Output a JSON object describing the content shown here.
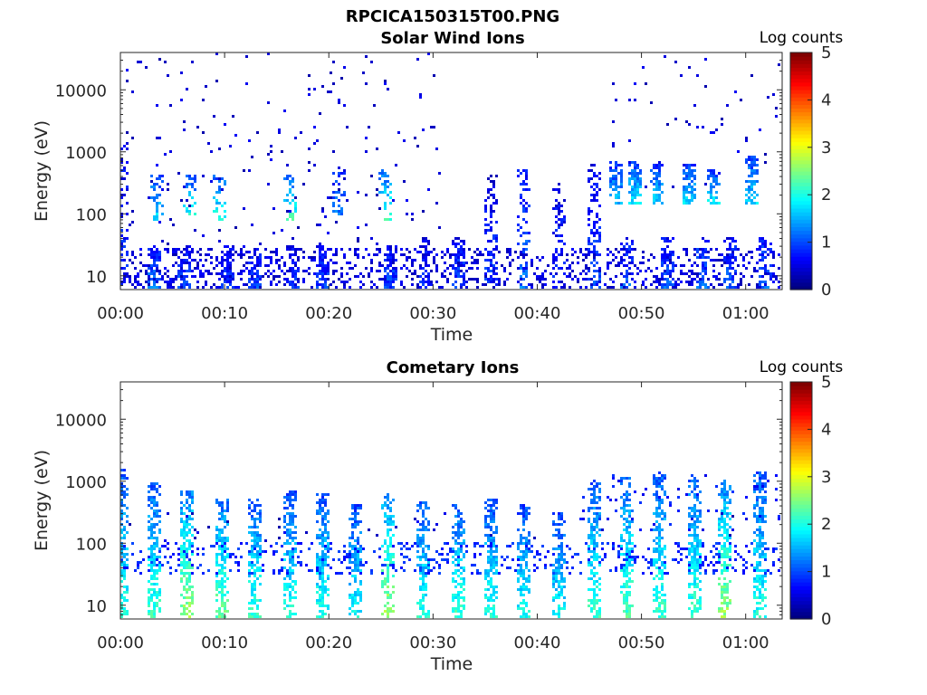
{
  "figure": {
    "title": "RPCICA150315T00.PNG"
  },
  "chart_data": [
    {
      "type": "heatmap",
      "title": "Solar Wind Ions",
      "xlabel": "Time",
      "ylabel": "Energy (eV)",
      "y_scale": "log",
      "xlim_minutes": [
        0,
        63.5
      ],
      "ylim_eV": [
        6,
        40000
      ],
      "x_ticks": [
        "00:00",
        "00:10",
        "00:20",
        "00:30",
        "00:40",
        "00:50",
        "01:00"
      ],
      "y_ticks": [
        "10",
        "100",
        "1000",
        "10000"
      ],
      "colorbar": {
        "title": "Log counts",
        "range": [
          0,
          5
        ],
        "ticks": [
          "0",
          "1",
          "2",
          "3",
          "4",
          "5"
        ],
        "colormap": "jet"
      },
      "grid": false,
      "bursts": [
        {
          "t": 0.2,
          "emin": 6,
          "emax": 1500,
          "dens": 0.45,
          "val": 0.5
        },
        {
          "t": 3.2,
          "emin": 6,
          "emax": 30,
          "dens": 0.8,
          "val": 0.8
        },
        {
          "t": 3.4,
          "emin": 80,
          "emax": 400,
          "dens": 0.5,
          "val": 1.3
        },
        {
          "t": 6.2,
          "emin": 6,
          "emax": 30,
          "dens": 0.8,
          "val": 0.6
        },
        {
          "t": 6.6,
          "emin": 100,
          "emax": 400,
          "dens": 0.5,
          "val": 1.4
        },
        {
          "t": 9.6,
          "emin": 80,
          "emax": 400,
          "dens": 0.5,
          "val": 1.5
        },
        {
          "t": 10.2,
          "emin": 6,
          "emax": 30,
          "dens": 0.8,
          "val": 0.5
        },
        {
          "t": 12.8,
          "emin": 6,
          "emax": 30,
          "dens": 0.7,
          "val": 0.6
        },
        {
          "t": 16.3,
          "emin": 80,
          "emax": 400,
          "dens": 0.5,
          "val": 1.6
        },
        {
          "t": 16.6,
          "emin": 6,
          "emax": 30,
          "dens": 0.8,
          "val": 0.5
        },
        {
          "t": 19.5,
          "emin": 6,
          "emax": 30,
          "dens": 0.8,
          "val": 0.6
        },
        {
          "t": 21.0,
          "emin": 100,
          "emax": 600,
          "dens": 0.4,
          "val": 0.8
        },
        {
          "t": 25.4,
          "emin": 80,
          "emax": 500,
          "dens": 0.5,
          "val": 1.6
        },
        {
          "t": 25.8,
          "emin": 6,
          "emax": 30,
          "dens": 0.8,
          "val": 0.6
        },
        {
          "t": 29.2,
          "emin": 6,
          "emax": 40,
          "dens": 0.7,
          "val": 0.5
        },
        {
          "t": 32.5,
          "emin": 6,
          "emax": 40,
          "dens": 0.6,
          "val": 0.6
        },
        {
          "t": 35.5,
          "emin": 6,
          "emax": 400,
          "dens": 0.5,
          "val": 0.5
        },
        {
          "t": 38.8,
          "emin": 6,
          "emax": 500,
          "dens": 0.4,
          "val": 0.8
        },
        {
          "t": 42.0,
          "emin": 6,
          "emax": 300,
          "dens": 0.4,
          "val": 0.5
        },
        {
          "t": 45.5,
          "emin": 6,
          "emax": 600,
          "dens": 0.5,
          "val": 0.6
        },
        {
          "t": 47.5,
          "emin": 150,
          "emax": 700,
          "dens": 0.8,
          "val": 1.1
        },
        {
          "t": 48.5,
          "emin": 6,
          "emax": 40,
          "dens": 0.6,
          "val": 0.7
        },
        {
          "t": 49.5,
          "emin": 150,
          "emax": 700,
          "dens": 0.8,
          "val": 1.3
        },
        {
          "t": 51.5,
          "emin": 150,
          "emax": 600,
          "dens": 0.8,
          "val": 1.2
        },
        {
          "t": 52.5,
          "emin": 6,
          "emax": 40,
          "dens": 0.6,
          "val": 0.7
        },
        {
          "t": 54.5,
          "emin": 150,
          "emax": 600,
          "dens": 0.8,
          "val": 1.2
        },
        {
          "t": 56.0,
          "emin": 6,
          "emax": 40,
          "dens": 0.6,
          "val": 0.8
        },
        {
          "t": 57.0,
          "emin": 150,
          "emax": 500,
          "dens": 0.8,
          "val": 1.3
        },
        {
          "t": 58.5,
          "emin": 6,
          "emax": 40,
          "dens": 0.6,
          "val": 0.7
        },
        {
          "t": 60.5,
          "emin": 150,
          "emax": 800,
          "dens": 0.8,
          "val": 1.2
        },
        {
          "t": 62.0,
          "emin": 6,
          "emax": 40,
          "dens": 0.6,
          "val": 0.8
        }
      ],
      "background": {
        "tmin": 0,
        "tmax": 31,
        "emin": 6,
        "emax": 40000,
        "dens": 0.07,
        "val": 0.2
      },
      "background2": {
        "tmin": 46,
        "tmax": 63.5,
        "emin": 200,
        "emax": 40000,
        "dens": 0.04,
        "val": 0.2
      },
      "low_band": {
        "emin": 6,
        "emax": 28,
        "dens": 0.25,
        "val": 0.25
      },
      "seed": 11
    },
    {
      "type": "heatmap",
      "title": "Cometary Ions",
      "xlabel": "Time",
      "ylabel": "Energy (eV)",
      "y_scale": "log",
      "xlim_minutes": [
        0,
        63.5
      ],
      "ylim_eV": [
        6,
        40000
      ],
      "x_ticks": [
        "00:00",
        "00:10",
        "00:20",
        "00:30",
        "00:40",
        "00:50",
        "01:00"
      ],
      "y_ticks": [
        "10",
        "100",
        "1000",
        "10000"
      ],
      "colorbar": {
        "title": "Log counts",
        "range": [
          0,
          5
        ],
        "ticks": [
          "0",
          "1",
          "2",
          "3",
          "4",
          "5"
        ],
        "colormap": "jet"
      },
      "grid": false,
      "bursts": [
        {
          "t": 0.2,
          "emin": 6,
          "emax": 1500,
          "dens": 0.7,
          "val": 1.5
        },
        {
          "t": 3.3,
          "emin": 6,
          "emax": 900,
          "dens": 0.7,
          "val": 1.6
        },
        {
          "t": 6.4,
          "emin": 6,
          "emax": 700,
          "dens": 0.7,
          "val": 2.0
        },
        {
          "t": 9.8,
          "emin": 6,
          "emax": 500,
          "dens": 0.7,
          "val": 1.8
        },
        {
          "t": 13.0,
          "emin": 6,
          "emax": 500,
          "dens": 0.7,
          "val": 1.6
        },
        {
          "t": 16.2,
          "emin": 6,
          "emax": 700,
          "dens": 0.7,
          "val": 1.5
        },
        {
          "t": 19.5,
          "emin": 6,
          "emax": 600,
          "dens": 0.7,
          "val": 1.5
        },
        {
          "t": 22.5,
          "emin": 6,
          "emax": 400,
          "dens": 0.7,
          "val": 1.4
        },
        {
          "t": 25.6,
          "emin": 6,
          "emax": 600,
          "dens": 0.7,
          "val": 2.1
        },
        {
          "t": 29.0,
          "emin": 6,
          "emax": 500,
          "dens": 0.7,
          "val": 1.5
        },
        {
          "t": 32.5,
          "emin": 6,
          "emax": 400,
          "dens": 0.7,
          "val": 1.6
        },
        {
          "t": 35.5,
          "emin": 6,
          "emax": 500,
          "dens": 0.7,
          "val": 1.5
        },
        {
          "t": 38.8,
          "emin": 6,
          "emax": 400,
          "dens": 0.7,
          "val": 1.4
        },
        {
          "t": 42.0,
          "emin": 6,
          "emax": 300,
          "dens": 0.7,
          "val": 1.4
        },
        {
          "t": 45.5,
          "emin": 6,
          "emax": 900,
          "dens": 0.7,
          "val": 1.6
        },
        {
          "t": 48.5,
          "emin": 6,
          "emax": 1100,
          "dens": 0.7,
          "val": 1.7
        },
        {
          "t": 51.8,
          "emin": 6,
          "emax": 1300,
          "dens": 0.7,
          "val": 1.6
        },
        {
          "t": 55.0,
          "emin": 6,
          "emax": 1200,
          "dens": 0.7,
          "val": 1.6
        },
        {
          "t": 58.0,
          "emin": 6,
          "emax": 1000,
          "dens": 0.7,
          "val": 2.0
        },
        {
          "t": 61.5,
          "emin": 6,
          "emax": 1300,
          "dens": 0.7,
          "val": 1.5
        }
      ],
      "background": {
        "tmin": 0,
        "tmax": 63.5,
        "emin": 100,
        "emax": 300,
        "dens": 0.05,
        "val": 0.2
      },
      "background2": {
        "tmin": 44,
        "tmax": 63.5,
        "emin": 150,
        "emax": 1200,
        "dens": 0.12,
        "val": 0.5
      },
      "low_band": {
        "emin": 30,
        "emax": 100,
        "dens": 0.18,
        "val": 0.6
      },
      "seed": 29
    }
  ]
}
